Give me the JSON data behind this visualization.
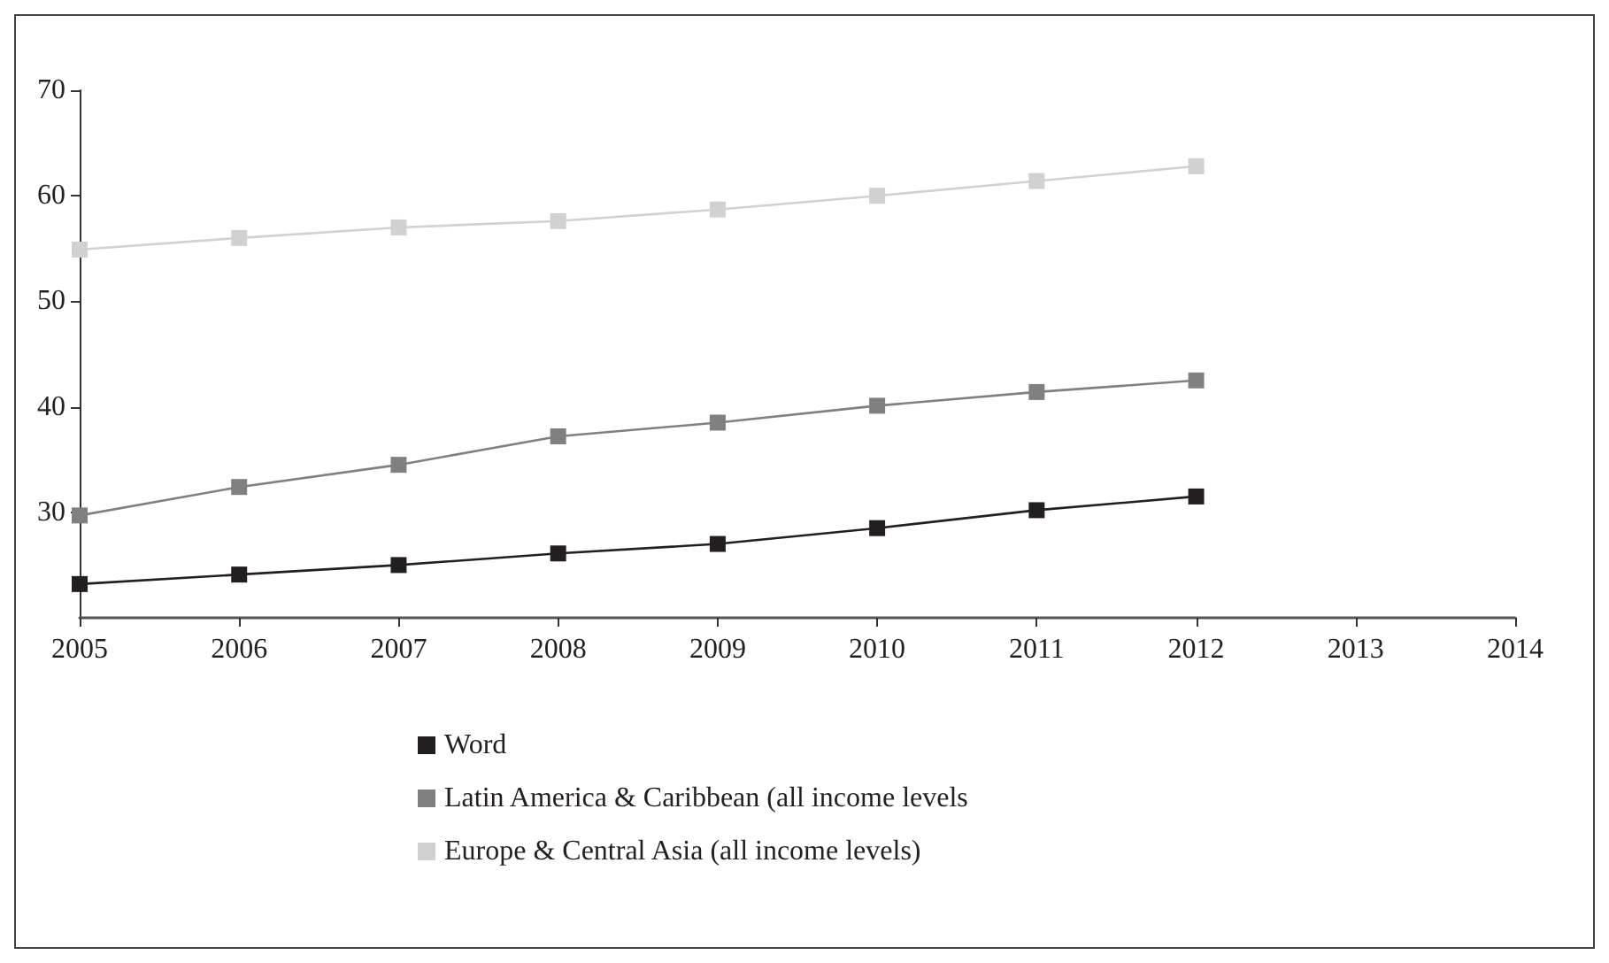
{
  "chart_data": {
    "type": "line",
    "x": [
      2005,
      2006,
      2007,
      2008,
      2009,
      2010,
      2011,
      2012
    ],
    "series": [
      {
        "name": "Word",
        "color": "#231f20",
        "values": [
          23.2,
          24.1,
          25.0,
          26.1,
          27.0,
          28.5,
          30.2,
          31.5
        ]
      },
      {
        "name": "Latin America & Caribbean (all income levels",
        "color": "#808080",
        "values": [
          29.7,
          32.4,
          34.5,
          37.2,
          38.5,
          40.1,
          41.4,
          42.5
        ]
      },
      {
        "name": "Europe & Central Asia (all income levels)",
        "color": "#d1d1d1",
        "values": [
          54.9,
          56.0,
          57.0,
          57.6,
          58.7,
          60.0,
          61.4,
          62.8
        ]
      }
    ],
    "xlim": [
      2005,
      2014
    ],
    "xticks": [
      2005,
      2006,
      2007,
      2008,
      2009,
      2010,
      2011,
      2012,
      2013,
      2014
    ],
    "ylim": [
      20,
      70
    ],
    "yticks": [
      30,
      40,
      50,
      60,
      70
    ],
    "grid": false,
    "legend": "bottom",
    "marker": "square",
    "line_style": "solid"
  }
}
